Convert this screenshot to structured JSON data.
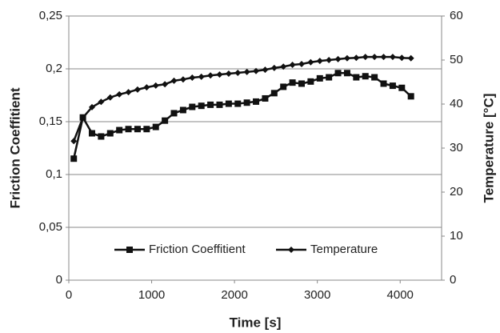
{
  "chart_data": {
    "type": "line",
    "x_label": "Time [s]",
    "y_label": "Friction Coeffitient",
    "y2_label": "Temperature [°C]",
    "x": [
      60,
      170,
      280,
      390,
      500,
      610,
      720,
      830,
      940,
      1050,
      1160,
      1270,
      1380,
      1490,
      1600,
      1710,
      1820,
      1930,
      2040,
      2150,
      2260,
      2370,
      2480,
      2590,
      2700,
      2810,
      2920,
      3030,
      3140,
      3250,
      3360,
      3470,
      3580,
      3690,
      3800,
      3910,
      4020,
      4130
    ],
    "series": [
      {
        "name": "Friction Coeffitient",
        "color": "#111111",
        "marker": "square",
        "values": [
          0.115,
          0.154,
          0.139,
          0.136,
          0.139,
          0.142,
          0.143,
          0.143,
          0.143,
          0.145,
          0.151,
          0.158,
          0.161,
          0.164,
          0.165,
          0.166,
          0.166,
          0.167,
          0.167,
          0.168,
          0.169,
          0.172,
          0.177,
          0.183,
          0.187,
          0.186,
          0.188,
          0.191,
          0.192,
          0.196,
          0.196,
          0.192,
          0.193,
          0.192,
          0.186,
          0.184,
          0.182,
          0.174
        ]
      },
      {
        "name": "Temperature",
        "color": "#111111",
        "marker": "diamond",
        "axis": "y2",
        "values": [
          31.6,
          36.9,
          39.3,
          40.5,
          41.5,
          42.2,
          42.7,
          43.3,
          43.8,
          44.2,
          44.5,
          45.3,
          45.6,
          46.0,
          46.2,
          46.5,
          46.7,
          46.9,
          47.1,
          47.3,
          47.5,
          47.8,
          48.2,
          48.5,
          48.9,
          49.1,
          49.5,
          49.8,
          50.0,
          50.2,
          50.4,
          50.5,
          50.7,
          50.7,
          50.7,
          50.7,
          50.5,
          50.4
        ]
      }
    ],
    "xlim": [
      0,
      4500
    ],
    "xticks": [
      0,
      1000,
      2000,
      3000,
      4000
    ],
    "ylim": [
      0,
      0.25
    ],
    "yticks": [
      0,
      {
        "value": 0.05,
        "label": "0,05"
      },
      {
        "value": 0.1,
        "label": "0,1"
      },
      {
        "value": 0.15,
        "label": "0,15"
      },
      {
        "value": 0.2,
        "label": "0,2"
      },
      {
        "value": 0.25,
        "label": "0,25"
      }
    ],
    "y2lim": [
      0,
      60
    ],
    "y2ticks": [
      0,
      10,
      20,
      30,
      40,
      50,
      60
    ],
    "grid": true,
    "legend": "lower center"
  }
}
